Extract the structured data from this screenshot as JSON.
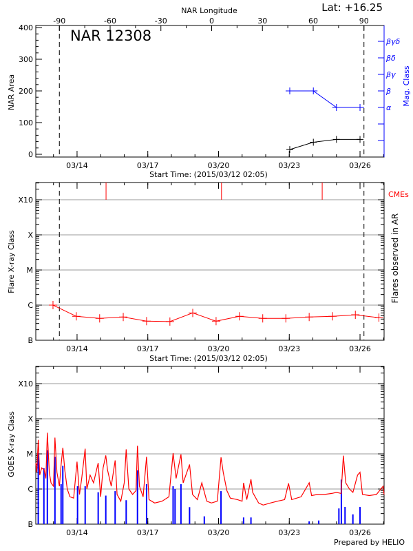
{
  "header": {
    "lat_label": "Lat: +16.25"
  },
  "footer": {
    "credit": "Prepared by HELIO"
  },
  "chart_data": [
    {
      "type": "line",
      "title": "NAR 12308",
      "xlabel": "Start Time: (2015/03/12 02:05)",
      "ylabel": "NAR Area",
      "y2label": "Mag. Class",
      "top_axis_label": "NAR Longitude",
      "top_ticks": [
        "-90",
        "-60",
        "-30",
        "0",
        "30",
        "60",
        "90"
      ],
      "limb_crossings": [
        "03/13 06:00",
        "03/26 04:00"
      ],
      "xlim": [
        "03/12 06:00",
        "03/27 00:30"
      ],
      "xticks": [
        "03/14",
        "03/17",
        "03/20",
        "03/23",
        "03/26"
      ],
      "ylim": [
        0,
        400
      ],
      "yticks": [
        "0",
        "100",
        "200",
        "300",
        "400"
      ],
      "mag_levels": [
        "α",
        "β",
        "βγ",
        "βδ",
        "βγδ"
      ],
      "series": [
        {
          "name": "NAR Area",
          "color": "#000000",
          "x": [
            "03/23 00:30",
            "03/24 00:30",
            "03/25 00:00",
            "03/26 00:00"
          ],
          "y": [
            15,
            38,
            47,
            47
          ]
        },
        {
          "name": "Mag. Class",
          "color": "#0000ff",
          "x": [
            "03/23 00:30",
            "03/24 00:30",
            "03/25 00:00",
            "03/26 00:00"
          ],
          "y": [
            "β",
            "β",
            "α",
            "α"
          ]
        }
      ]
    },
    {
      "type": "line",
      "xlabel": "Start Time: (2015/03/12 02:05)",
      "ylabel": "Flare X-ray Class",
      "y2label": "Flares observed in AR",
      "cme_label": "CMEs",
      "xlim": [
        "03/12 06:00",
        "03/27 00:30"
      ],
      "xticks": [
        "03/14",
        "03/17",
        "03/20",
        "03/23",
        "03/26"
      ],
      "yscale": "log",
      "yticks": [
        "B",
        "C",
        "M",
        "X",
        "X10"
      ],
      "grid": true,
      "colors": {
        "flares": "#ff0000",
        "cmes": "#ff0000"
      },
      "flares": {
        "x": [
          "03/12 23:30",
          "03/13 23:15",
          "03/14 23:00",
          "03/15 23:00",
          "03/16 22:45",
          "03/17 22:30",
          "03/18 21:45",
          "03/19 21:30",
          "03/20 21:15",
          "03/21 21:00",
          "03/22 20:30",
          "03/23 20:15",
          "03/24 20:00",
          "03/25 19:15",
          "03/26 19:15"
        ],
        "y": [
          "C1.0",
          "B4.8",
          "B4.2",
          "B4.6",
          "B3.5",
          "B3.4",
          "B6.0",
          "B3.5",
          "B4.8",
          "B4.2",
          "B4.2",
          "B4.6",
          "B4.8",
          "B5.3",
          "B4.4"
        ]
      },
      "cmes": [
        "03/15 05:30",
        "03/20 03:00",
        "03/24 09:30"
      ],
      "limb_crossings": [
        "03/13 06:00",
        "03/26 04:00"
      ]
    },
    {
      "type": "line",
      "xlabel": "",
      "ylabel": "GOES X-ray Class",
      "xlim": [
        "03/12 06:00",
        "03/27 00:30"
      ],
      "xticks": [
        "03/14",
        "03/17",
        "03/20",
        "03/23",
        "03/26"
      ],
      "yscale": "log",
      "yticks": [
        "B",
        "C",
        "M",
        "X",
        "X10"
      ],
      "grid": true,
      "series": [
        {
          "name": "long",
          "color": "#ff0000",
          "x": [
            "03/12 06:00",
            "03/12 07:00",
            "03/12 08:30",
            "03/12 10:00",
            "03/12 12:00",
            "03/12 14:30",
            "03/12 16:15",
            "03/12 17:45",
            "03/12 19:45",
            "03/12 21:30",
            "03/13 00:00",
            "03/13 01:30",
            "03/13 03:30",
            "03/13 06:00",
            "03/13 07:45",
            "03/13 09:30",
            "03/13 11:30",
            "03/13 14:00",
            "03/13 16:45",
            "03/13 20:30",
            "03/14 00:00",
            "03/14 02:30",
            "03/14 04:45",
            "03/14 08:15",
            "03/14 10:00",
            "03/14 13:15",
            "03/14 16:45",
            "03/14 21:30",
            "03/15 00:00",
            "03/15 02:30",
            "03/15 05:15",
            "03/15 07:00",
            "03/15 10:45",
            "03/15 14:45",
            "03/15 16:45",
            "03/15 20:30",
            "03/16 00:00",
            "03/16 02:00",
            "03/16 04:45",
            "03/16 08:30",
            "03/16 12:00",
            "03/16 13:30",
            "03/16 15:30",
            "03/16 19:15",
            "03/16 22:45",
            "03/17 01:15",
            "03/17 07:00",
            "03/17 14:30",
            "03/17 21:30",
            "03/18 01:45",
            "03/18 04:45",
            "03/18 09:45",
            "03/18 12:00",
            "03/18 18:30",
            "03/18 21:30",
            "03/19 02:30",
            "03/19 07:00",
            "03/19 12:00",
            "03/19 16:45",
            "03/19 22:45",
            "03/20 02:30",
            "03/20 04:45",
            "03/20 08:30",
            "03/20 12:00",
            "03/20 19:15",
            "03/21 00:00",
            "03/21 01:30",
            "03/21 04:45",
            "03/21 09:00",
            "03/21 10:45",
            "03/21 16:45",
            "03/21 21:30",
            "03/22 04:45",
            "03/22 12:00",
            "03/22 19:15",
            "03/22 23:15",
            "03/23 02:30",
            "03/23 12:00",
            "03/23 20:15",
            "03/23 22:45",
            "03/24 04:45",
            "03/24 12:00",
            "03/24 19:15",
            "03/25 00:00",
            "03/25 04:45",
            "03/25 07:00",
            "03/25 09:30",
            "03/25 13:15",
            "03/25 16:45",
            "03/25 21:30",
            "03/26 00:00",
            "03/26 02:30",
            "03/26 09:30",
            "03/26 16:45",
            "03/26 23:30",
            "03/27 00:30"
          ],
          "y": [
            "C5.5",
            "C3.0",
            "M2.5",
            "C2.5",
            "C4.0",
            "C3.5",
            "C2.0",
            "M4.0",
            "C3.0",
            "C1.5",
            "C1.2",
            "M2.9",
            "C3.0",
            "C1.2",
            "C5.0",
            "M1.5",
            "C3.5",
            "C1.0",
            "B6.0",
            "B5.5",
            "C6.0",
            "B7.0",
            "C2.0",
            "M1.4",
            "C1.0",
            "C2.5",
            "C1.5",
            "C5.5",
            "B6.0",
            "C4.0",
            "C9.0",
            "C3.5",
            "C1.2",
            "C6.5",
            "B7.0",
            "B4.5",
            "C1.5",
            "M1.35",
            "C1.0",
            "B7.0",
            "B9.0",
            "M1.7",
            "C1.2",
            "B6.0",
            "C8.3",
            "B5.0",
            "B4.0",
            "B4.5",
            "B6.0",
            "M1.05",
            "C2.0",
            "C9.7",
            "C1.5",
            "C5.0",
            "B7.0",
            "B5.0",
            "C1.5",
            "B4.5",
            "B4.0",
            "B4.5",
            "C8.0",
            "C3.0",
            "B9.0",
            "B5.5",
            "B5.0",
            "B4.5",
            "C1.5",
            "B5.0",
            "C1.9",
            "B8.0",
            "B4.0",
            "B3.5",
            "B4.0",
            "B4.5",
            "B5.0",
            "C1.45",
            "B5.0",
            "B6.0",
            "C1.5",
            "B6.5",
            "B7.0",
            "B7.0",
            "B7.5",
            "B8.0",
            "B7.5",
            "C8.9",
            "C1.5",
            "C1.0",
            "B8.0",
            "C2.5",
            "C3.0",
            "B7.0",
            "B6.5",
            "B7.0",
            "C1.2",
            "B7.0"
          ]
        },
        {
          "name": "short",
          "color": "#0000ff",
          "x": [
            "03/12 08:30",
            "03/12 14:15",
            "03/12 17:45",
            "03/13 01:30",
            "03/13 07:45",
            "03/13 09:30",
            "03/14 00:30",
            "03/14 08:15",
            "03/14 21:30",
            "03/15 05:15",
            "03/15 14:45",
            "03/16 02:00",
            "03/16 13:30",
            "03/16 22:45",
            "03/18 01:45",
            "03/18 03:45",
            "03/18 09:45",
            "03/18 18:30",
            "03/19 09:30",
            "03/20 02:30",
            "03/21 01:30",
            "03/21 09:00",
            "03/23 20:15",
            "03/24 06:00",
            "03/25 02:30",
            "03/25 05:00",
            "03/25 08:45",
            "03/25 16:45",
            "03/26 00:00"
          ],
          "y": [
            "M1.05",
            "C3.9",
            "M1.27",
            "C8.3",
            "C1.37",
            "C4.6",
            "C1.2",
            "C1.2",
            "B8.1",
            "B6.5",
            "B8.7",
            "B4.8",
            "C3.4",
            "C1.37",
            "C1.2",
            "C1.0",
            "C1.37",
            "B3.05",
            "B1.67",
            "B8.7",
            "B1.55",
            "B1.55",
            "B1.2",
            "B1.27",
            "B2.8",
            "C1.85",
            "B3.1",
            "B1.9",
            "B3.1"
          ]
        }
      ]
    }
  ]
}
